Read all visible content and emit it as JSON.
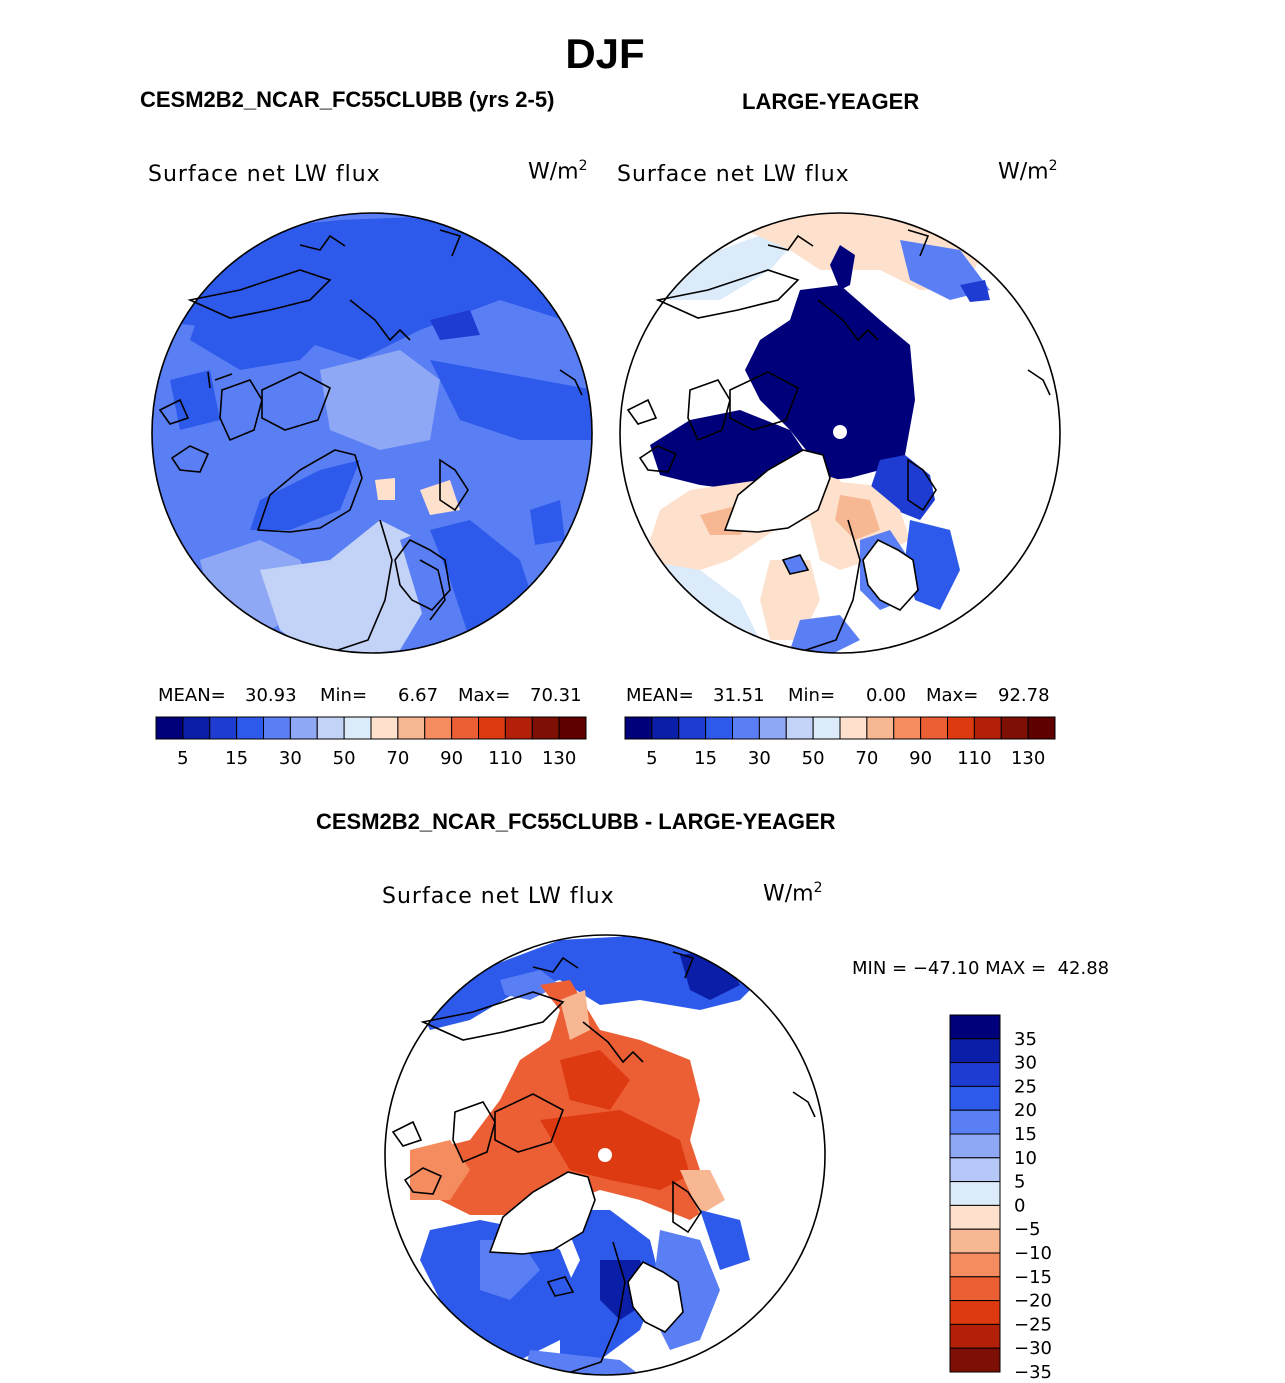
{
  "figure": {
    "title": "DJF",
    "panel_left_title": "CESM2B2_NCAR_FC55CLUBB (yrs 2-5)",
    "panel_right_title": "LARGE-YEAGER",
    "panel_diff_title": "CESM2B2_NCAR_FC55CLUBB - LARGE-YEAGER"
  },
  "panels": {
    "left": {
      "variable": "Surface net LW flux",
      "units_base": "W/m",
      "units_exp": "2",
      "mean_label": "MEAN=",
      "mean": "30.93",
      "min_label": "Min=",
      "min": "6.67",
      "max_label": "Max=",
      "max": "70.31"
    },
    "right": {
      "variable": "Surface net LW flux",
      "units_base": "W/m",
      "units_exp": "2",
      "mean_label": "MEAN=",
      "mean": "31.51",
      "min_label": "Min=",
      "min": "0.00",
      "max_label": "Max=",
      "max": "92.78"
    },
    "diff": {
      "variable": "Surface net LW flux",
      "units_base": "W/m",
      "units_exp": "2",
      "minmax": "MIN = −47.10 MAX =  42.88"
    }
  },
  "colorbars": {
    "abs_colors": [
      "#00007a",
      "#0a1ea8",
      "#1e3cd2",
      "#2d5aeb",
      "#5a7ff5",
      "#8fa8f5",
      "#c3d3f7",
      "#dcebfa",
      "#fde1cc",
      "#f8b793",
      "#f48c5f",
      "#ec5f35",
      "#dd3a12",
      "#b3200a",
      "#7e0f05",
      "#5f0000"
    ],
    "abs_labels": [
      "5",
      "15",
      "30",
      "50",
      "70",
      "90",
      "110",
      "130"
    ],
    "diff_colors": [
      "#00007a",
      "#0a1ea8",
      "#1e3cd2",
      "#2d5aeb",
      "#5a7ff5",
      "#8fa8f5",
      "#b5c8f7",
      "#dcebfa",
      "#fde1cc",
      "#f8b793",
      "#f48c5f",
      "#ec5f35",
      "#dd3a12",
      "#b3200a",
      "#7e0f05"
    ],
    "diff_labels": [
      "35",
      "30",
      "25",
      "20",
      "15",
      "10",
      "5",
      "0",
      "−5",
      "−10",
      "−15",
      "−20",
      "−25",
      "−30",
      "−35"
    ]
  },
  "colors": {
    "land": "#ffffff",
    "coast": "#000000"
  }
}
